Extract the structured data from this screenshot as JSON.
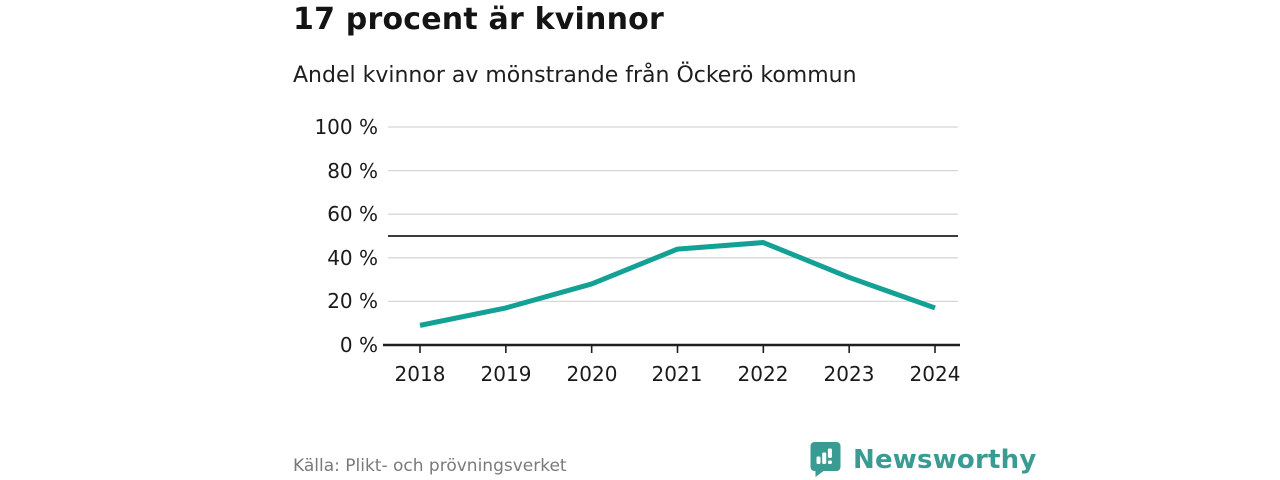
{
  "header": {
    "title": "17 procent är kvinnor",
    "subtitle": "Andel kvinnor av mönstrande från Öckerö kommun"
  },
  "footer": {
    "source": "Källa: Plikt- och prövningsverket",
    "brand_name": "Newsworthy",
    "brand_icon": "bar-chart-speech-bubble-icon"
  },
  "colors": {
    "series_line": "#14a195",
    "brand_teal": "#3a9b93",
    "gridline": "#d8d8d8",
    "reference_line": "#3c3c3c",
    "axis": "#1f1f1f",
    "text": "#1a1a1a",
    "source_text": "#7a7a7a"
  },
  "chart_data": {
    "type": "line",
    "title": "17 procent är kvinnor",
    "subtitle": "Andel kvinnor av mönstrande från Öckerö kommun",
    "x": [
      2018,
      2019,
      2020,
      2021,
      2022,
      2023,
      2024
    ],
    "values": [
      9,
      17,
      28,
      44,
      47,
      31,
      17
    ],
    "unit": "%",
    "series_name": "Andel kvinnor",
    "ylim": [
      0,
      100
    ],
    "y_ticks": [
      0,
      20,
      40,
      60,
      80,
      100
    ],
    "y_tick_labels": [
      "0 %",
      "20 %",
      "40 %",
      "60 %",
      "80 %",
      "100 %"
    ],
    "x_tick_labels": [
      "2018",
      "2019",
      "2020",
      "2021",
      "2022",
      "2023",
      "2024"
    ],
    "reference_line": 50,
    "grid": "horizontal",
    "legend": "none",
    "source": "Källa: Plikt- och prövningsverket"
  }
}
